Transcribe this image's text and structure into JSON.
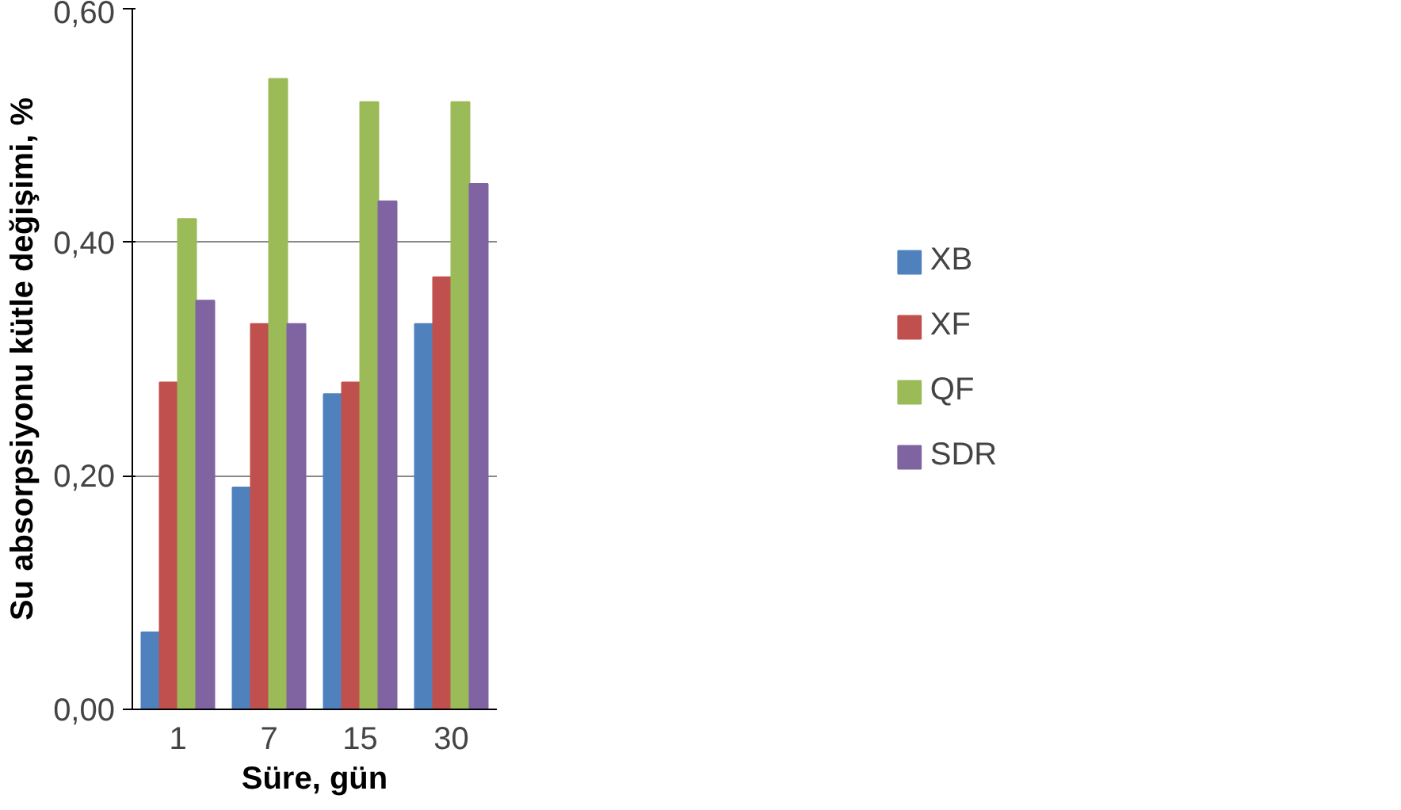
{
  "chart_data": {
    "type": "bar",
    "xlabel": "Süre, gün",
    "ylabel": "Su absorpsiyonu kütle değişimi, %",
    "categories": [
      "1",
      "7",
      "15",
      "30"
    ],
    "series": [
      {
        "name": "XB",
        "color": "#4f81bd",
        "values": [
          0.066,
          0.19,
          0.27,
          0.33
        ]
      },
      {
        "name": "XF",
        "color": "#c0504d",
        "values": [
          0.28,
          0.33,
          0.28,
          0.37
        ]
      },
      {
        "name": "QF",
        "color": "#9bbb59",
        "values": [
          0.42,
          0.54,
          0.52,
          0.52
        ]
      },
      {
        "name": "SDR",
        "color": "#8064a2",
        "values": [
          0.35,
          0.33,
          0.435,
          0.45
        ]
      }
    ],
    "ylim": [
      0,
      0.6
    ],
    "yticks": [
      {
        "value": 0,
        "label": "0,00"
      },
      {
        "value": 0.2,
        "label": "0,20"
      },
      {
        "value": 0.4,
        "label": "0,40"
      },
      {
        "value": 0.6,
        "label": "0,60"
      }
    ],
    "grid": "y",
    "legend": "right"
  }
}
